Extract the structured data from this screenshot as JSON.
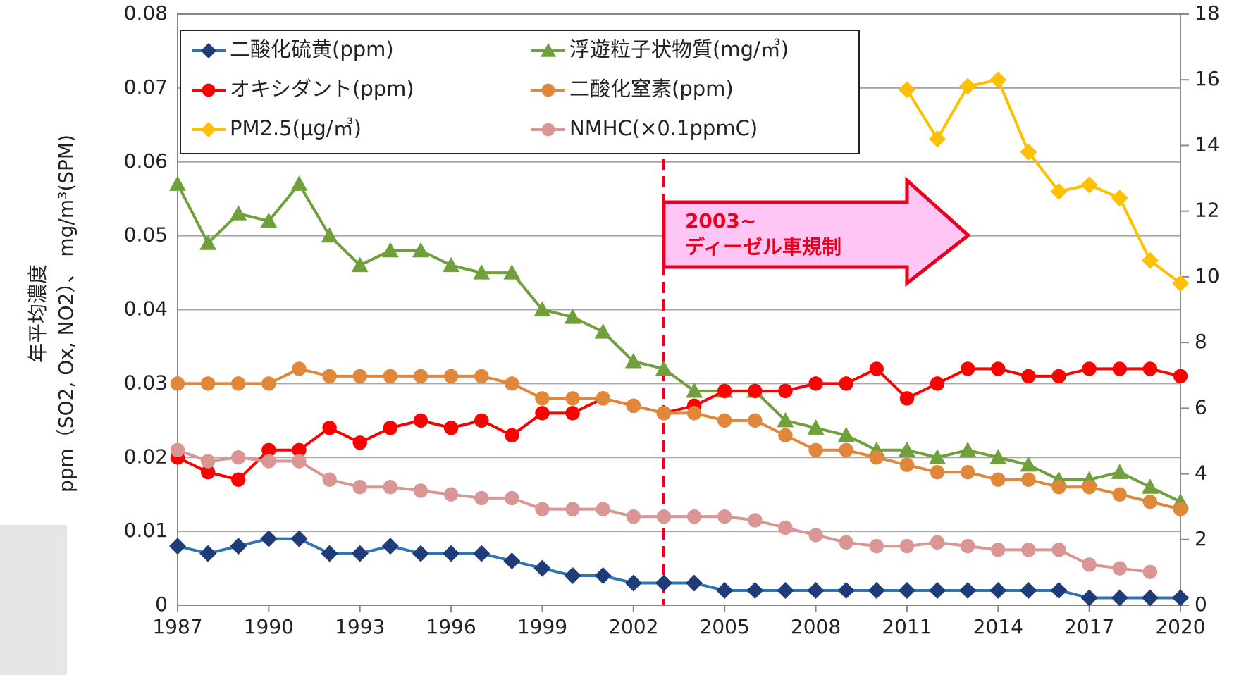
{
  "chart_data": {
    "type": "line",
    "y_label_lines": [
      "年平均濃度",
      "ppm（SO2, Ox, NO2）、 mg/m³(SPM)"
    ],
    "x": [
      1987,
      1988,
      1989,
      1990,
      1991,
      1992,
      1993,
      1994,
      1995,
      1996,
      1997,
      1998,
      1999,
      2000,
      2001,
      2002,
      2003,
      2004,
      2005,
      2006,
      2007,
      2008,
      2009,
      2010,
      2011,
      2012,
      2013,
      2014,
      2015,
      2016,
      2017,
      2018,
      2019,
      2020
    ],
    "xlim": [
      1987,
      2020
    ],
    "xticks": [
      1987,
      1990,
      1993,
      1996,
      1999,
      2002,
      2005,
      2008,
      2011,
      2014,
      2017,
      2020
    ],
    "ylim": [
      0,
      0.08
    ],
    "yticks": [
      0,
      0.01,
      0.02,
      0.03,
      0.04,
      0.05,
      0.06,
      0.07,
      0.08
    ],
    "y2lim": [
      0,
      18
    ],
    "y2ticks": [
      0,
      2,
      4,
      6,
      8,
      10,
      12,
      14,
      16,
      18
    ],
    "grid": true,
    "legend": "top-left",
    "series": [
      {
        "name": "二酸化硫黄(ppm)",
        "color": "#2e75b6",
        "marker_color": "#1f3b78",
        "marker": "diamond",
        "values": [
          0.008,
          0.007,
          0.008,
          0.009,
          0.009,
          0.007,
          0.007,
          0.008,
          0.007,
          0.007,
          0.007,
          0.006,
          0.005,
          0.004,
          0.004,
          0.003,
          0.003,
          0.003,
          0.002,
          0.002,
          0.002,
          0.002,
          0.002,
          0.002,
          0.002,
          0.002,
          0.002,
          0.002,
          0.002,
          0.002,
          0.001,
          0.001,
          0.001,
          0.001
        ]
      },
      {
        "name": "浮遊粒子状物質(mg/㎥)",
        "color": "#70a03c",
        "marker_color": "#70a03c",
        "marker": "triangle",
        "values": [
          0.057,
          0.049,
          0.053,
          0.052,
          0.057,
          0.05,
          0.046,
          0.048,
          0.048,
          0.046,
          0.045,
          0.045,
          0.04,
          0.039,
          0.037,
          0.033,
          0.032,
          0.029,
          0.029,
          0.029,
          0.025,
          0.024,
          0.023,
          0.021,
          0.021,
          0.02,
          0.021,
          0.02,
          0.019,
          0.017,
          0.017,
          0.018,
          0.016,
          0.014
        ]
      },
      {
        "name": "オキシダント(ppm)",
        "color": "#ff0000",
        "marker_color": "#ff0000",
        "marker": "circle",
        "values": [
          0.02,
          0.018,
          0.017,
          0.021,
          0.021,
          0.024,
          0.022,
          0.024,
          0.025,
          0.024,
          0.025,
          0.023,
          0.026,
          0.026,
          0.028,
          0.027,
          0.026,
          0.027,
          0.029,
          0.029,
          0.029,
          0.03,
          0.03,
          0.032,
          0.028,
          0.03,
          0.032,
          0.032,
          0.031,
          0.031,
          0.032,
          0.032,
          0.032,
          0.031
        ]
      },
      {
        "name": "二酸化窒素(ppm)",
        "color": "#e0873a",
        "marker_color": "#e0873a",
        "marker": "circle",
        "values": [
          0.03,
          0.03,
          0.03,
          0.03,
          0.032,
          0.031,
          0.031,
          0.031,
          0.031,
          0.031,
          0.031,
          0.03,
          0.028,
          0.028,
          0.028,
          0.027,
          0.026,
          0.026,
          0.025,
          0.025,
          0.023,
          0.021,
          0.021,
          0.02,
          0.019,
          0.018,
          0.018,
          0.017,
          0.017,
          0.016,
          0.016,
          0.015,
          0.014,
          0.013
        ]
      },
      {
        "name": "PM2.5(μg/㎥)",
        "color": "#ffc000",
        "marker_color": "#ffc000",
        "marker": "diamond",
        "axis": "y2",
        "values": [
          null,
          null,
          null,
          null,
          null,
          null,
          null,
          null,
          null,
          null,
          null,
          null,
          null,
          null,
          null,
          null,
          null,
          null,
          null,
          null,
          null,
          null,
          null,
          null,
          15.7,
          14.2,
          15.8,
          16.0,
          13.8,
          12.6,
          12.8,
          12.4,
          10.5,
          9.8
        ]
      },
      {
        "name": "NMHC(×0.1ppmC)",
        "color": "#d99694",
        "marker_color": "#d99694",
        "marker": "circle",
        "values": [
          0.021,
          0.0195,
          0.02,
          0.0195,
          0.0195,
          0.017,
          0.016,
          0.016,
          0.0155,
          0.015,
          0.0145,
          0.0145,
          0.013,
          0.013,
          0.013,
          0.012,
          0.012,
          0.012,
          0.012,
          0.0115,
          0.0105,
          0.0095,
          0.0085,
          0.008,
          0.008,
          0.0085,
          0.008,
          0.0075,
          0.0075,
          0.0075,
          0.0055,
          0.005,
          0.0045,
          null
        ]
      }
    ],
    "annotation": {
      "x": 2003,
      "lines": [
        "2003~",
        "ディーゼル車規制"
      ],
      "color": "#e8001c",
      "fill": "#ffc6f5"
    }
  }
}
